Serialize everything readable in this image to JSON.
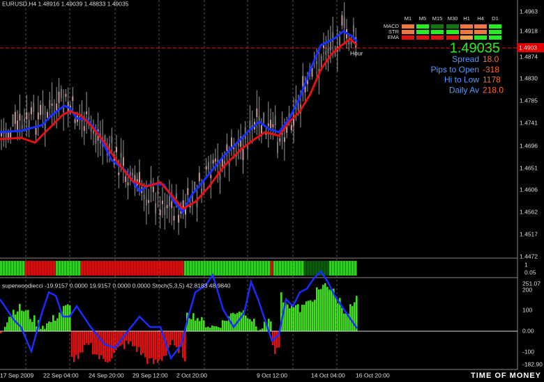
{
  "header": {
    "symbol_info": "EURUSD,H4  1.48916 1.49039 1.48833 1.49035"
  },
  "price_axis": [
    "1.4963",
    "1.4918",
    "1.4874",
    "1.4830",
    "1.4785",
    "1.4741",
    "1.4696",
    "1.4651",
    "1.4606",
    "1.4562",
    "1.4517",
    "1.4472"
  ],
  "current_price_tag": "1.4903",
  "signal_table": {
    "columns": [
      "M1",
      "M5",
      "M15",
      "M30",
      "H1",
      "H4",
      "D1"
    ],
    "rows": [
      "MACD",
      "STR",
      "EMA"
    ]
  },
  "info_panel": {
    "price": "1.49035",
    "rows": [
      {
        "label": "Spread",
        "value": "18.0"
      },
      {
        "label": "Pips to Open",
        "value": "-318"
      },
      {
        "label": "Hi to Low",
        "value": "1178"
      },
      {
        "label": "Daily Av",
        "value": "218.0"
      }
    ]
  },
  "chart_label": "Hour",
  "strip_axis": [
    "1",
    "0.05"
  ],
  "oscillator": {
    "label": "superwoodiecci -19.9157 0.0000 19.9157 0.0000 0.0000  Stoch(5,3,5) 42.8183 48.9840",
    "axis": [
      "251.07",
      "200",
      "100",
      "0.00",
      "-100",
      "-182.90"
    ]
  },
  "time_axis": [
    "17 Sep 2009",
    "22 Sep 04:00",
    "24 Sep 20:00",
    "29 Sep 12:00",
    "2 Oct 20:00",
    "9 Oct 12:00",
    "14 Oct 04:00",
    "16 Oct 20:00"
  ],
  "watermark": "TIME OF MONEY"
}
